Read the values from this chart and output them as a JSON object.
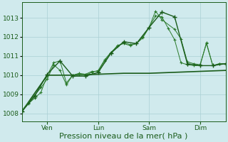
{
  "background_color": "#d0eaed",
  "grid_color": "#aacfd4",
  "line_color1": "#1a5c1a",
  "line_color2": "#1a5c1a",
  "line_color3": "#2a7a2a",
  "line_color4": "#1a5c1a",
  "xlabel": "Pression niveau de la mer( hPa )",
  "xlabel_fontsize": 8,
  "tick_label_color": "#1a5c1a",
  "tick_fontsize": 6.5,
  "yticks": [
    1008,
    1009,
    1010,
    1011,
    1012,
    1013
  ],
  "ylim": [
    1007.6,
    1013.8
  ],
  "xlim": [
    0,
    96
  ],
  "xtick_positions": [
    12,
    36,
    60,
    84
  ],
  "xtick_labels": [
    "Ven",
    "Lun",
    "Sam",
    "Dim"
  ],
  "series1_x": [
    0,
    3,
    6,
    9,
    12,
    15,
    18,
    21,
    24,
    27,
    30,
    33,
    36,
    39,
    42,
    45,
    48,
    51,
    54,
    57,
    60,
    63,
    66,
    72,
    75,
    78,
    81,
    84,
    87,
    90,
    93,
    96
  ],
  "series1_y": [
    1008.1,
    1008.5,
    1008.8,
    1009.1,
    1010.0,
    1010.65,
    1010.75,
    1009.6,
    1010.0,
    1010.1,
    1010.05,
    1010.2,
    1010.2,
    1010.75,
    1011.15,
    1011.55,
    1011.65,
    1011.55,
    1011.65,
    1012.0,
    1012.5,
    1013.35,
    1012.9,
    1012.4,
    1011.9,
    1010.7,
    1010.6,
    1010.55,
    1011.65,
    1010.5,
    1010.6,
    1010.6
  ],
  "series2_x": [
    0,
    3,
    6,
    9,
    12,
    15,
    18,
    21,
    24,
    27,
    30,
    33,
    36,
    39,
    42,
    45,
    48,
    51,
    54,
    57,
    60,
    63,
    66,
    69,
    72,
    75,
    78,
    81,
    84,
    87,
    90,
    93,
    96
  ],
  "series2_y": [
    1008.15,
    1008.55,
    1008.95,
    1009.35,
    1009.8,
    1010.55,
    1010.25,
    1009.5,
    1010.0,
    1010.05,
    1010.0,
    1010.15,
    1010.25,
    1010.8,
    1011.2,
    1011.5,
    1011.7,
    1011.6,
    1011.65,
    1011.95,
    1012.5,
    1013.1,
    1013.05,
    1012.45,
    1011.85,
    1010.65,
    1010.55,
    1010.5,
    1010.5,
    1011.7,
    1010.5,
    1010.6,
    1010.6
  ],
  "series3_x": [
    0,
    6,
    12,
    18,
    24,
    30,
    36,
    42,
    48,
    54,
    60,
    66,
    72,
    78,
    84,
    90,
    96
  ],
  "series3_y": [
    1008.1,
    1008.9,
    1010.05,
    1010.75,
    1009.95,
    1009.95,
    1010.15,
    1011.15,
    1011.75,
    1011.65,
    1012.5,
    1013.3,
    1013.05,
    1010.6,
    1010.5,
    1010.5,
    1010.6
  ],
  "series4_x": [
    0,
    12,
    24,
    36,
    48,
    60,
    72,
    84,
    96
  ],
  "series4_y": [
    1008.1,
    1010.0,
    1010.0,
    1010.05,
    1010.1,
    1010.1,
    1010.15,
    1010.2,
    1010.25
  ]
}
